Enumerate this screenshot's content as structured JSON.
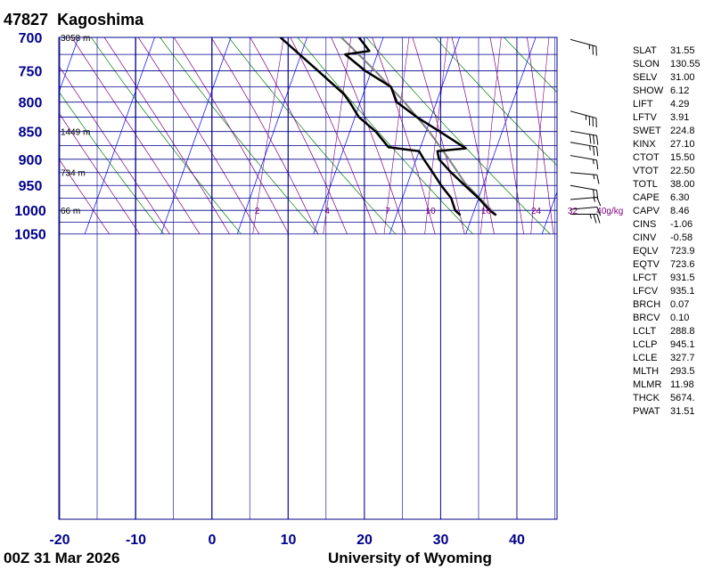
{
  "header": {
    "station": "47827",
    "name": "Kagoshima"
  },
  "footer": {
    "time": "00Z 31 Mar 2026",
    "source": "University of Wyoming"
  },
  "colors": {
    "grid": "#00008b",
    "isotherm": "#0000ff",
    "dry_adiabat": "#008000",
    "moist_adiabat": "#800080",
    "mixing_ratio": "#800080",
    "profile": "#000000",
    "parcel": "#808080",
    "axis_text": "#00008b",
    "mix_label": "#800080"
  },
  "chart_data": {
    "type": "skew-t",
    "x_ticks": [
      "-20",
      "-10",
      "0",
      "10",
      "20",
      "30",
      "40"
    ],
    "y_ticks": [
      "700",
      "750",
      "800",
      "850",
      "900",
      "950",
      "1000",
      "1050"
    ],
    "pressure_levels": [
      700,
      725,
      750,
      775,
      800,
      825,
      850,
      875,
      900,
      925,
      950,
      975,
      1000,
      1025,
      1050
    ],
    "height_labels": [
      {
        "p": 700,
        "text": "3058 m"
      },
      {
        "p": 850,
        "text": "1449 m"
      },
      {
        "p": 925,
        "text": "734 m"
      },
      {
        "p": 1000,
        "text": "66 m"
      }
    ],
    "mixing_ratio_labels": [
      "2",
      "4",
      "7",
      "10",
      "16",
      "24",
      "32",
      "40g/kg"
    ],
    "mixing_ratio_values": [
      2,
      4,
      7,
      10,
      16,
      24,
      32,
      40
    ],
    "temperature": [
      {
        "p": 1010,
        "t": 23.1
      },
      {
        "p": 1000,
        "t": 22.0
      },
      {
        "p": 975,
        "t": 20.0
      },
      {
        "p": 950,
        "t": 17.6
      },
      {
        "p": 925,
        "t": 15.2
      },
      {
        "p": 900,
        "t": 13.0
      },
      {
        "p": 885,
        "t": 12.4
      },
      {
        "p": 880,
        "t": 16.0
      },
      {
        "p": 850,
        "t": 11.8
      },
      {
        "p": 825,
        "t": 8.1
      },
      {
        "p": 800,
        "t": 4.8
      },
      {
        "p": 775,
        "t": 3.3
      },
      {
        "p": 750,
        "t": -0.8
      },
      {
        "p": 725,
        "t": -4.2
      },
      {
        "p": 720,
        "t": -1.2
      },
      {
        "p": 700,
        "t": -3.2
      }
    ],
    "dewpoint": [
      {
        "p": 1010,
        "t": 18.4
      },
      {
        "p": 1000,
        "t": 17.5
      },
      {
        "p": 975,
        "t": 16.4
      },
      {
        "p": 950,
        "t": 14.5
      },
      {
        "p": 925,
        "t": 12.8
      },
      {
        "p": 900,
        "t": 11.0
      },
      {
        "p": 885,
        "t": 10.0
      },
      {
        "p": 878,
        "t": 5.8
      },
      {
        "p": 850,
        "t": 3.4
      },
      {
        "p": 825,
        "t": 0.5
      },
      {
        "p": 800,
        "t": -1.4
      },
      {
        "p": 787,
        "t": -2.5
      },
      {
        "p": 750,
        "t": -7.0
      },
      {
        "p": 700,
        "t": -13.5
      }
    ],
    "parcel": [
      {
        "p": 1010,
        "t": 23.1
      },
      {
        "p": 945,
        "t": 17.5
      },
      {
        "p": 900,
        "t": 14.3
      },
      {
        "p": 850,
        "t": 10.4
      },
      {
        "p": 800,
        "t": 5.8
      },
      {
        "p": 750,
        "t": 0.5
      },
      {
        "p": 700,
        "t": -5.5
      }
    ],
    "wind_barbs": [
      {
        "p": 703,
        "dir": 285,
        "spd": 25
      },
      {
        "p": 815,
        "dir": 285,
        "spd": 35
      },
      {
        "p": 849,
        "dir": 280,
        "spd": 30
      },
      {
        "p": 869,
        "dir": 280,
        "spd": 25
      },
      {
        "p": 893,
        "dir": 280,
        "spd": 15
      },
      {
        "p": 925,
        "dir": 275,
        "spd": 15
      },
      {
        "p": 950,
        "dir": 280,
        "spd": 20
      },
      {
        "p": 978,
        "dir": 265,
        "spd": 15
      },
      {
        "p": 998,
        "dir": 265,
        "spd": 10
      },
      {
        "p": 1008,
        "dir": 270,
        "spd": 25
      }
    ]
  },
  "indices": [
    {
      "key": "SLAT",
      "val": "31.55"
    },
    {
      "key": "SLON",
      "val": "130.55"
    },
    {
      "key": "SELV",
      "val": "31.00"
    },
    {
      "key": "SHOW",
      "val": "6.12"
    },
    {
      "key": "LIFT",
      "val": "4.29"
    },
    {
      "key": "LFTV",
      "val": "3.91"
    },
    {
      "key": "SWET",
      "val": "224.8"
    },
    {
      "key": "KINX",
      "val": "27.10"
    },
    {
      "key": "CTOT",
      "val": "15.50"
    },
    {
      "key": "VTOT",
      "val": "22.50"
    },
    {
      "key": "TOTL",
      "val": "38.00"
    },
    {
      "key": "CAPE",
      "val": "6.30"
    },
    {
      "key": "CAPV",
      "val": "8.46"
    },
    {
      "key": "CINS",
      "val": "-1.06"
    },
    {
      "key": "CINV",
      "val": "-0.58"
    },
    {
      "key": "EQLV",
      "val": "723.9"
    },
    {
      "key": "EQTV",
      "val": "723.6"
    },
    {
      "key": "LFCT",
      "val": "931.5"
    },
    {
      "key": "LFCV",
      "val": "935.1"
    },
    {
      "key": "BRCH",
      "val": "0.07"
    },
    {
      "key": "BRCV",
      "val": "0.10"
    },
    {
      "key": "LCLT",
      "val": "288.8"
    },
    {
      "key": "LCLP",
      "val": "945.1"
    },
    {
      "key": "LCLE",
      "val": "327.7"
    },
    {
      "key": "MLTH",
      "val": "293.5"
    },
    {
      "key": "MLMR",
      "val": "11.98"
    },
    {
      "key": "THCK",
      "val": "5674."
    },
    {
      "key": "PWAT",
      "val": "31.51"
    }
  ]
}
